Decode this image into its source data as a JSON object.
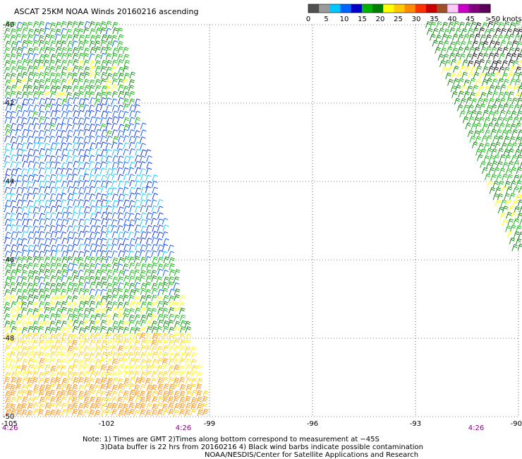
{
  "title": "ASCAT 25KM NOAA Winds 20160216 ascending",
  "colorbar": {
    "labels": [
      "0",
      "5",
      "10",
      "15",
      "20",
      "25",
      "30",
      "35",
      "40",
      "45",
      ">50 knots"
    ],
    "colors": [
      "#505050",
      "#9a9a9a",
      "#00c8ff",
      "#0064ff",
      "#0000c8",
      "#00b400",
      "#008000",
      "#ffff00",
      "#ffc800",
      "#ff8c00",
      "#ff3200",
      "#c80000",
      "#a05028",
      "#ffc8ff",
      "#c800c8",
      "#800080",
      "#5a005a"
    ]
  },
  "chart_data": {
    "type": "scatter",
    "description_type": "wind barb map",
    "x_axis": {
      "ticks": [
        "-105",
        "-102",
        "-99",
        "-96",
        "-93",
        "-90"
      ],
      "range": [
        -105,
        -90
      ]
    },
    "y_axis": {
      "ticks": [
        "-40",
        "-42",
        "-44",
        "-46",
        "-48",
        "-50"
      ],
      "range": [
        -50,
        -40
      ]
    },
    "time_labels": [
      "4:26",
      "4:26",
      "4:26"
    ],
    "swaths": [
      {
        "side": "left",
        "speed_bands_knots": [
          {
            "lat": -40.5,
            "speed": 17
          },
          {
            "lat": -41.5,
            "speed": 18
          },
          {
            "lat": -42.5,
            "speed": 13
          },
          {
            "lat": -43.5,
            "speed": 11
          },
          {
            "lat": -44.5,
            "speed": 11
          },
          {
            "lat": -45.5,
            "speed": 12
          },
          {
            "lat": -46.5,
            "speed": 17
          },
          {
            "lat": -47.5,
            "speed": 19
          },
          {
            "lat": -48.5,
            "speed": 23
          },
          {
            "lat": -49.5,
            "speed": 26
          }
        ]
      },
      {
        "side": "right",
        "speed_bands_knots": [
          {
            "lat": -40.5,
            "speed": 18
          },
          {
            "lat": -41.5,
            "speed": 19
          },
          {
            "lat": -42.5,
            "speed": 18
          },
          {
            "lat": -43.5,
            "speed": 18
          },
          {
            "lat": -44.5,
            "speed": 19
          },
          {
            "lat": -45.5,
            "speed": 19
          }
        ]
      }
    ]
  },
  "notes": {
    "line1": "Note: 1) Times are GMT 2)Times along bottom correspond to measurement at −45S",
    "line2": "3)Data buffer is 22 hrs from 20160216 4) Black wind barbs indicate possible contamination",
    "line3": "NOAA/NESDIS/Center for Satellite Applications and Research"
  }
}
